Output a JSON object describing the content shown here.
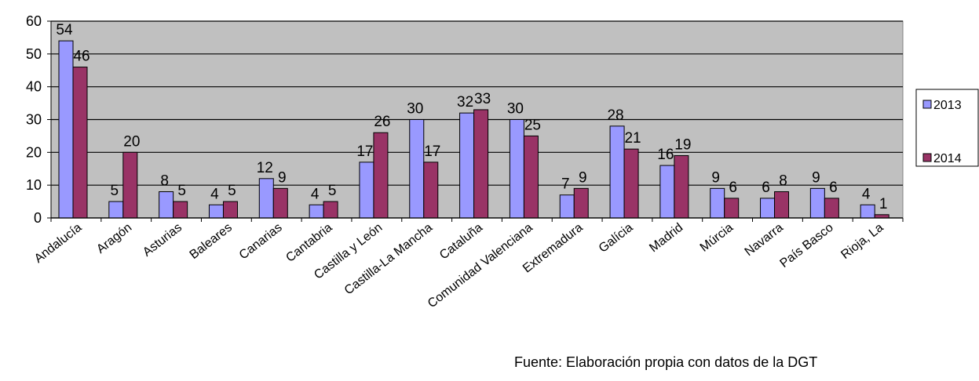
{
  "source_note": "Fuente: Elaboración propia con datos de la DGT",
  "colors": {
    "plot_background": "#c0c0c0",
    "series_2013": "#9999ff",
    "series_2014": "#993366",
    "gridline": "#000000"
  },
  "chart_data": {
    "type": "bar",
    "categories": [
      "Andalucía",
      "Aragón",
      "Asturias",
      "Baleares",
      "Canarias",
      "Cantabria",
      "Castilla y León",
      "Castilla-La Mancha",
      "Cataluña",
      "Comunidad Valenciana",
      "Extremadura",
      "Galícia",
      "Madrid",
      "Múrcia",
      "Navarra",
      "País Basco",
      "Rioja, La"
    ],
    "series": [
      {
        "name": "2013",
        "values": [
          54,
          5,
          8,
          4,
          12,
          4,
          17,
          30,
          32,
          30,
          7,
          28,
          16,
          9,
          6,
          9,
          4
        ]
      },
      {
        "name": "2014",
        "values": [
          46,
          20,
          5,
          5,
          9,
          5,
          26,
          17,
          33,
          25,
          9,
          21,
          19,
          6,
          8,
          6,
          1
        ]
      }
    ],
    "ylim": [
      0,
      60
    ],
    "yticks": [
      0,
      10,
      20,
      30,
      40,
      50,
      60
    ],
    "grid": true,
    "legend_position": "right",
    "data_labels": true
  }
}
